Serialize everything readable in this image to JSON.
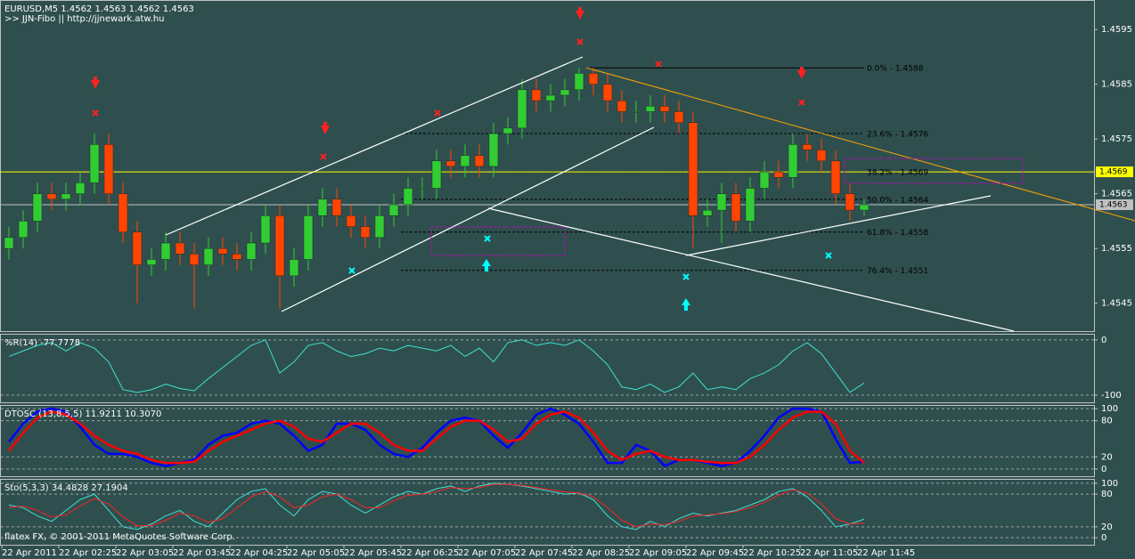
{
  "chart_data": [
    {
      "type": "candlestick",
      "title": "EURUSD,M5  1.4562 1.4563 1.4562 1.4563",
      "subtitle": ">> JJN-Fibo || http://jjnewark.atw.hu",
      "categories": [
        "22 Apr 2011",
        null,
        null,
        null,
        "22 Apr 02:25",
        null,
        null,
        null,
        "22 Apr 03:05",
        null,
        null,
        null,
        "22 Apr 03:45",
        null,
        null,
        null,
        "22 Apr 04:25",
        null,
        null,
        null,
        "22 Apr 05:05",
        null,
        null,
        null,
        "22 Apr 05:45",
        null,
        null,
        null,
        "22 Apr 06:25",
        null,
        null,
        null,
        "22 Apr 07:05",
        null,
        null,
        null,
        "22 Apr 07:45",
        null,
        null,
        null,
        "22 Apr 08:25",
        null,
        null,
        null,
        "22 Apr 09:05",
        null,
        null,
        null,
        "22 Apr 09:45",
        null,
        null,
        null,
        "22 Apr 10:25",
        null,
        null,
        null,
        "22 Apr 11:05",
        null,
        null,
        null,
        "22 Apr 11:45"
      ],
      "open": [
        1.4555,
        1.4557,
        1.456,
        1.4565,
        1.4564,
        1.4565,
        1.4567,
        1.4574,
        1.4565,
        1.4558,
        1.4552,
        1.4553,
        1.4556,
        1.4554,
        1.4552,
        1.4555,
        1.4554,
        1.4553,
        1.4556,
        1.4561,
        1.455,
        1.4553,
        1.4561,
        1.4564,
        1.4561,
        1.4559,
        1.4557,
        1.4561,
        1.4563,
        1.4566,
        1.4566,
        1.4571,
        1.457,
        1.4572,
        1.457,
        1.4576,
        1.4577,
        1.4584,
        1.4582,
        1.4583,
        1.4584,
        1.4587,
        1.4585,
        1.4582,
        1.458,
        1.458,
        1.4581,
        1.458,
        1.4578,
        1.4561,
        1.4562,
        1.4565,
        1.456,
        1.4566,
        1.4569,
        1.4568,
        1.4574,
        1.4573,
        1.4571,
        1.4565,
        1.4562
      ],
      "high": [
        1.4559,
        1.4562,
        1.4567,
        1.4567,
        1.4567,
        1.4569,
        1.4576,
        1.4576,
        1.4567,
        1.456,
        1.4555,
        1.4558,
        1.4558,
        1.4556,
        1.4557,
        1.4557,
        1.4556,
        1.4558,
        1.4563,
        1.4563,
        1.4555,
        1.4563,
        1.4566,
        1.4566,
        1.4563,
        1.4561,
        1.4563,
        1.4565,
        1.4568,
        1.4568,
        1.4573,
        1.4573,
        1.4574,
        1.4574,
        1.4578,
        1.4579,
        1.4586,
        1.4586,
        1.4585,
        1.4586,
        1.4588,
        1.4588,
        1.4587,
        1.4584,
        1.4582,
        1.4583,
        1.4583,
        1.4582,
        1.458,
        1.4564,
        1.4567,
        1.4567,
        1.4568,
        1.4571,
        1.4571,
        1.4576,
        1.4576,
        1.4575,
        1.4573,
        1.4567,
        1.4564
      ],
      "low": [
        1.4553,
        1.4555,
        1.4558,
        1.4562,
        1.4562,
        1.4563,
        1.4565,
        1.4563,
        1.4556,
        1.4545,
        1.455,
        1.4551,
        1.4552,
        1.4544,
        1.455,
        1.4552,
        1.4551,
        1.4551,
        1.4554,
        1.4544,
        1.4548,
        1.4551,
        1.4559,
        1.4559,
        1.4557,
        1.4555,
        1.4555,
        1.4559,
        1.4561,
        1.4564,
        1.4564,
        1.4568,
        1.4568,
        1.4568,
        1.4568,
        1.4574,
        1.4575,
        1.458,
        1.458,
        1.4581,
        1.4582,
        1.4583,
        1.458,
        1.4578,
        1.4578,
        1.4578,
        1.4578,
        1.4576,
        1.4555,
        1.4559,
        1.4556,
        1.4558,
        1.4558,
        1.4564,
        1.4566,
        1.4566,
        1.4571,
        1.4569,
        1.4563,
        1.456,
        1.4561
      ],
      "close": [
        1.4557,
        1.456,
        1.4565,
        1.4564,
        1.4565,
        1.4567,
        1.4574,
        1.4565,
        1.4558,
        1.4552,
        1.4553,
        1.4556,
        1.4554,
        1.4552,
        1.4555,
        1.4554,
        1.4553,
        1.4556,
        1.4561,
        1.455,
        1.4553,
        1.4561,
        1.4564,
        1.4561,
        1.4559,
        1.4557,
        1.4561,
        1.4563,
        1.4566,
        1.4566,
        1.4571,
        1.457,
        1.4572,
        1.457,
        1.4576,
        1.4577,
        1.4584,
        1.4582,
        1.4583,
        1.4584,
        1.4587,
        1.4585,
        1.4582,
        1.458,
        1.458,
        1.4581,
        1.458,
        1.4578,
        1.4561,
        1.4562,
        1.4565,
        1.456,
        1.4566,
        1.4569,
        1.4568,
        1.4574,
        1.4573,
        1.4571,
        1.4565,
        1.4562,
        1.4563
      ],
      "up_color": "#32cd32",
      "down_color": "#ff4500",
      "ylim": [
        1.45399,
        1.46004
      ],
      "yticks": [
        1.4595,
        1.4585,
        1.4575,
        1.4565,
        1.4555,
        1.4545
      ],
      "grid": false,
      "fibo": [
        {
          "label": "0.0% - 1.4588",
          "value": 1.4588,
          "style": "solid"
        },
        {
          "label": "23.6% - 1.4576",
          "value": 1.4576,
          "style": "dashed"
        },
        {
          "label": "38.2% - 1.4569",
          "value": 1.4569,
          "style": "dashed"
        },
        {
          "label": "50.0% - 1.4564",
          "value": 1.4564,
          "style": "dashed"
        },
        {
          "label": "61.8% - 1.4558",
          "value": 1.4558,
          "style": "dashed"
        },
        {
          "label": "76.4% - 1.4551",
          "value": 1.4551,
          "style": "dashed"
        }
      ],
      "price_lines": [
        {
          "value": 1.4569,
          "color": "#ffff00"
        },
        {
          "value": 1.4563,
          "color": "#c0c0c0"
        }
      ]
    },
    {
      "type": "line",
      "title": "%R(14) -77.7778",
      "ylim": [
        -113,
        11
      ],
      "yticks": [
        0,
        -100
      ],
      "grid": true,
      "series": [
        {
          "color": "#40e0d0",
          "values": [
            -30,
            -20,
            -10,
            -5,
            -20,
            -5,
            -15,
            -40,
            -90,
            -95,
            -90,
            -80,
            -88,
            -92,
            -70,
            -50,
            -30,
            -10,
            0,
            -60,
            -40,
            -10,
            -5,
            -20,
            -30,
            -25,
            -15,
            -20,
            -10,
            -15,
            -20,
            -10,
            -30,
            -15,
            -40,
            -5,
            0,
            -10,
            -5,
            -10,
            0,
            -20,
            -45,
            -85,
            -90,
            -80,
            -95,
            -85,
            -60,
            -90,
            -85,
            -90,
            -70,
            -60,
            -45,
            -20,
            -5,
            -25,
            -60,
            -95,
            -78
          ]
        }
      ]
    },
    {
      "type": "line",
      "title": "DTOSC (13,8,5,5) 11.9211 10.3070",
      "ylim": [
        -12,
        106
      ],
      "yticks": [
        100,
        80,
        20,
        0
      ],
      "grid": true,
      "series": [
        {
          "color": "#0000ff",
          "values": [
            45,
            75,
            95,
            100,
            95,
            70,
            40,
            25,
            25,
            20,
            10,
            5,
            10,
            15,
            40,
            55,
            60,
            75,
            80,
            75,
            55,
            30,
            40,
            75,
            75,
            65,
            40,
            25,
            20,
            35,
            60,
            80,
            85,
            80,
            55,
            35,
            60,
            90,
            100,
            90,
            75,
            45,
            10,
            10,
            40,
            30,
            5,
            15,
            15,
            10,
            5,
            10,
            30,
            55,
            85,
            100,
            100,
            95,
            50,
            10,
            12
          ]
        },
        {
          "color": "#ff0000",
          "values": [
            30,
            60,
            85,
            95,
            90,
            75,
            55,
            40,
            30,
            25,
            15,
            10,
            10,
            12,
            30,
            45,
            55,
            65,
            75,
            80,
            70,
            50,
            45,
            60,
            75,
            75,
            60,
            40,
            30,
            30,
            50,
            70,
            80,
            80,
            65,
            45,
            50,
            75,
            90,
            95,
            85,
            60,
            30,
            15,
            25,
            30,
            20,
            15,
            15,
            12,
            10,
            10,
            20,
            40,
            65,
            85,
            95,
            95,
            75,
            30,
            10
          ]
        }
      ]
    },
    {
      "type": "line",
      "title": "Sto(5,3,3) 34.4828 27.1904",
      "annotation": "flatex FX, © 2001-2011 MetaQuotes Software Corp.",
      "ylim": [
        -13,
        108
      ],
      "yticks": [
        100,
        80,
        20,
        0
      ],
      "grid": true,
      "series": [
        {
          "color": "#40e0d0",
          "values": [
            60,
            55,
            40,
            30,
            50,
            70,
            80,
            50,
            20,
            15,
            25,
            40,
            50,
            30,
            20,
            45,
            70,
            85,
            90,
            60,
            40,
            70,
            85,
            80,
            60,
            45,
            60,
            75,
            85,
            80,
            90,
            95,
            85,
            95,
            100,
            98,
            95,
            90,
            85,
            80,
            82,
            70,
            40,
            20,
            15,
            30,
            20,
            35,
            45,
            40,
            45,
            50,
            60,
            70,
            85,
            90,
            75,
            50,
            20,
            25,
            34
          ]
        },
        {
          "color": "#ff2020",
          "values": [
            55,
            58,
            50,
            38,
            42,
            58,
            72,
            62,
            38,
            22,
            22,
            32,
            45,
            40,
            28,
            35,
            55,
            75,
            85,
            75,
            55,
            60,
            75,
            80,
            70,
            55,
            55,
            68,
            78,
            80,
            85,
            92,
            90,
            92,
            98,
            98,
            96,
            92,
            88,
            84,
            82,
            75,
            55,
            32,
            20,
            25,
            24,
            30,
            40,
            42,
            44,
            48,
            55,
            65,
            78,
            88,
            82,
            62,
            35,
            25,
            27
          ]
        }
      ]
    }
  ]
}
